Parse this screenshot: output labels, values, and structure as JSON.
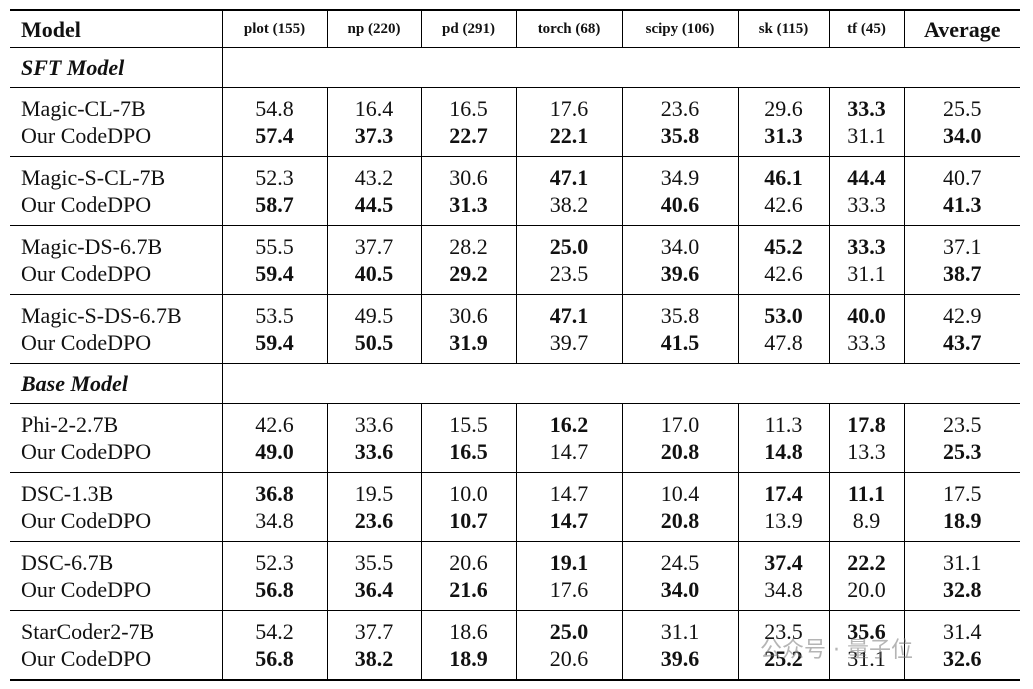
{
  "table": {
    "header": [
      "Model",
      "plot (155)",
      "np (220)",
      "pd (291)",
      "torch (68)",
      "scipy (106)",
      "sk (115)",
      "tf (45)",
      "Average"
    ],
    "sections": [
      {
        "title": "SFT Model",
        "groups": [
          [
            {
              "model": "Magic-CL-7B",
              "values": [
                "54.8",
                "16.4",
                "16.5",
                "17.6",
                "23.6",
                "29.6",
                "33.3",
                "25.5"
              ],
              "bold": [
                false,
                false,
                false,
                false,
                false,
                false,
                true,
                false
              ]
            },
            {
              "model": "Our CodeDPO",
              "values": [
                "57.4",
                "37.3",
                "22.7",
                "22.1",
                "35.8",
                "31.3",
                "31.1",
                "34.0"
              ],
              "bold": [
                true,
                true,
                true,
                true,
                true,
                true,
                false,
                true
              ]
            }
          ],
          [
            {
              "model": "Magic-S-CL-7B",
              "values": [
                "52.3",
                "43.2",
                "30.6",
                "47.1",
                "34.9",
                "46.1",
                "44.4",
                "40.7"
              ],
              "bold": [
                false,
                false,
                false,
                true,
                false,
                true,
                true,
                false
              ]
            },
            {
              "model": "Our CodeDPO",
              "values": [
                "58.7",
                "44.5",
                "31.3",
                "38.2",
                "40.6",
                "42.6",
                "33.3",
                "41.3"
              ],
              "bold": [
                true,
                true,
                true,
                false,
                true,
                false,
                false,
                true
              ]
            }
          ],
          [
            {
              "model": "Magic-DS-6.7B",
              "values": [
                "55.5",
                "37.7",
                "28.2",
                "25.0",
                "34.0",
                "45.2",
                "33.3",
                "37.1"
              ],
              "bold": [
                false,
                false,
                false,
                true,
                false,
                true,
                true,
                false
              ]
            },
            {
              "model": "Our CodeDPO",
              "values": [
                "59.4",
                "40.5",
                "29.2",
                "23.5",
                "39.6",
                "42.6",
                "31.1",
                "38.7"
              ],
              "bold": [
                true,
                true,
                true,
                false,
                true,
                false,
                false,
                true
              ]
            }
          ],
          [
            {
              "model": "Magic-S-DS-6.7B",
              "values": [
                "53.5",
                "49.5",
                "30.6",
                "47.1",
                "35.8",
                "53.0",
                "40.0",
                "42.9"
              ],
              "bold": [
                false,
                false,
                false,
                true,
                false,
                true,
                true,
                false
              ]
            },
            {
              "model": "Our CodeDPO",
              "values": [
                "59.4",
                "50.5",
                "31.9",
                "39.7",
                "41.5",
                "47.8",
                "33.3",
                "43.7"
              ],
              "bold": [
                true,
                true,
                true,
                false,
                true,
                false,
                false,
                true
              ]
            }
          ]
        ]
      },
      {
        "title": "Base Model",
        "groups": [
          [
            {
              "model": "Phi-2-2.7B",
              "values": [
                "42.6",
                "33.6",
                "15.5",
                "16.2",
                "17.0",
                "11.3",
                "17.8",
                "23.5"
              ],
              "bold": [
                false,
                false,
                false,
                true,
                false,
                false,
                true,
                false
              ]
            },
            {
              "model": "Our CodeDPO",
              "values": [
                "49.0",
                "33.6",
                "16.5",
                "14.7",
                "20.8",
                "14.8",
                "13.3",
                "25.3"
              ],
              "bold": [
                true,
                true,
                true,
                false,
                true,
                true,
                false,
                true
              ]
            }
          ],
          [
            {
              "model": "DSC-1.3B",
              "values": [
                "36.8",
                "19.5",
                "10.0",
                "14.7",
                "10.4",
                "17.4",
                "11.1",
                "17.5"
              ],
              "bold": [
                true,
                false,
                false,
                false,
                false,
                true,
                true,
                false
              ]
            },
            {
              "model": "Our CodeDPO",
              "values": [
                "34.8",
                "23.6",
                "10.7",
                "14.7",
                "20.8",
                "13.9",
                "8.9",
                "18.9"
              ],
              "bold": [
                false,
                true,
                true,
                true,
                true,
                false,
                false,
                true
              ]
            }
          ],
          [
            {
              "model": "DSC-6.7B",
              "values": [
                "52.3",
                "35.5",
                "20.6",
                "19.1",
                "24.5",
                "37.4",
                "22.2",
                "31.1"
              ],
              "bold": [
                false,
                false,
                false,
                true,
                false,
                true,
                true,
                false
              ]
            },
            {
              "model": "Our CodeDPO",
              "values": [
                "56.8",
                "36.4",
                "21.6",
                "17.6",
                "34.0",
                "34.8",
                "20.0",
                "32.8"
              ],
              "bold": [
                true,
                true,
                true,
                false,
                true,
                false,
                false,
                true
              ]
            }
          ],
          [
            {
              "model": "StarCoder2-7B",
              "values": [
                "54.2",
                "37.7",
                "18.6",
                "25.0",
                "31.1",
                "23.5",
                "35.6",
                "31.4"
              ],
              "bold": [
                false,
                false,
                false,
                true,
                false,
                false,
                true,
                false
              ]
            },
            {
              "model": "Our CodeDPO",
              "values": [
                "56.8",
                "38.2",
                "18.9",
                "20.6",
                "39.6",
                "25.2",
                "31.1",
                "32.6"
              ],
              "bold": [
                true,
                true,
                true,
                false,
                true,
                true,
                false,
                true
              ]
            }
          ]
        ]
      }
    ]
  },
  "watermark": "公众号 · 量子位"
}
